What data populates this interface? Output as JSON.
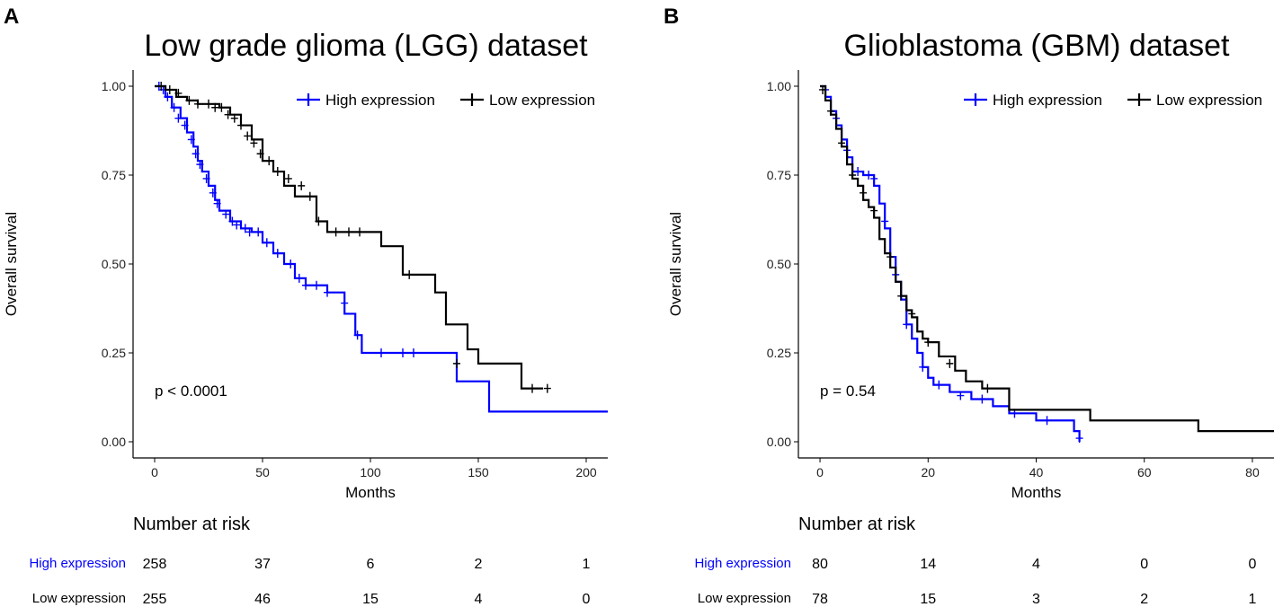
{
  "colors": {
    "high": "#0000ff",
    "low": "#000000"
  },
  "chart_data": [
    {
      "type": "line",
      "panel": "A",
      "title": "Low grade glioma (LGG) dataset",
      "xlabel": "Months",
      "ylabel": "Overall survival",
      "xlim": [
        -10,
        210
      ],
      "ylim": [
        0,
        1
      ],
      "xticks": [
        0,
        50,
        100,
        150,
        200
      ],
      "yticks": [
        0,
        0.25,
        0.5,
        0.75,
        1
      ],
      "ytick_labels": [
        "0.00",
        "0.25",
        "0.50",
        "0.75",
        "1.00"
      ],
      "legend": [
        "High expression",
        "Low expression"
      ],
      "legend_position": "top-right",
      "pvalue_text": "p < 0.0001",
      "series": [
        {
          "name": "High expression",
          "color": "#0000ff",
          "x": [
            0,
            5,
            8,
            12,
            15,
            18,
            20,
            22,
            25,
            28,
            30,
            35,
            40,
            45,
            50,
            55,
            60,
            65,
            70,
            80,
            88,
            93,
            96,
            140,
            155,
            210
          ],
          "y": [
            1.0,
            0.97,
            0.94,
            0.91,
            0.87,
            0.83,
            0.79,
            0.76,
            0.72,
            0.68,
            0.65,
            0.62,
            0.6,
            0.59,
            0.56,
            0.53,
            0.5,
            0.46,
            0.44,
            0.42,
            0.36,
            0.3,
            0.25,
            0.17,
            0.085,
            0.085
          ],
          "censor_x": [
            2,
            4,
            6,
            9,
            11,
            14,
            17,
            19,
            21,
            24,
            27,
            29,
            33,
            36,
            38,
            42,
            44,
            48,
            52,
            57,
            63,
            67,
            70,
            75,
            80,
            88,
            94,
            105,
            115,
            120
          ],
          "censor_y": [
            1.0,
            0.99,
            0.97,
            0.94,
            0.91,
            0.89,
            0.85,
            0.81,
            0.78,
            0.74,
            0.7,
            0.67,
            0.64,
            0.62,
            0.61,
            0.6,
            0.59,
            0.59,
            0.56,
            0.53,
            0.5,
            0.46,
            0.44,
            0.44,
            0.42,
            0.39,
            0.3,
            0.25,
            0.25,
            0.25
          ]
        },
        {
          "name": "Low expression",
          "color": "#000000",
          "x": [
            0,
            5,
            10,
            15,
            20,
            30,
            35,
            40,
            45,
            50,
            55,
            60,
            65,
            75,
            80,
            105,
            115,
            130,
            135,
            145,
            150,
            170,
            180
          ],
          "y": [
            1.0,
            0.99,
            0.97,
            0.96,
            0.95,
            0.94,
            0.92,
            0.89,
            0.85,
            0.79,
            0.76,
            0.72,
            0.69,
            0.62,
            0.59,
            0.55,
            0.47,
            0.42,
            0.33,
            0.26,
            0.22,
            0.15,
            0.15
          ],
          "censor_x": [
            3,
            7,
            11,
            16,
            20,
            25,
            28,
            31,
            34,
            37,
            40,
            43,
            46,
            49,
            53,
            57,
            62,
            68,
            72,
            76,
            84,
            90,
            95,
            118,
            140,
            175,
            182
          ],
          "censor_y": [
            1.0,
            0.99,
            0.98,
            0.96,
            0.95,
            0.95,
            0.94,
            0.94,
            0.92,
            0.91,
            0.89,
            0.86,
            0.84,
            0.81,
            0.79,
            0.76,
            0.74,
            0.72,
            0.69,
            0.62,
            0.59,
            0.59,
            0.59,
            0.47,
            0.22,
            0.15,
            0.15
          ]
        }
      ],
      "risk_table": {
        "title": "Number at risk",
        "times": [
          0,
          50,
          100,
          150,
          200
        ],
        "rows": [
          {
            "label": "High expression",
            "color": "#0000ff",
            "values": [
              "258",
              "37",
              "6",
              "2",
              "1"
            ]
          },
          {
            "label": "Low expression",
            "color": "#000000",
            "values": [
              "255",
              "46",
              "15",
              "4",
              "0"
            ]
          }
        ]
      }
    },
    {
      "type": "line",
      "panel": "B",
      "title": "Glioblastoma (GBM) dataset",
      "xlabel": "Months",
      "ylabel": "Overall survival",
      "xlim": [
        -4,
        84
      ],
      "ylim": [
        0,
        1
      ],
      "xticks": [
        0,
        20,
        40,
        60,
        80
      ],
      "yticks": [
        0,
        0.25,
        0.5,
        0.75,
        1
      ],
      "ytick_labels": [
        "0.00",
        "0.25",
        "0.50",
        "0.75",
        "1.00"
      ],
      "legend": [
        "High expression",
        "Low expression"
      ],
      "legend_position": "top-right",
      "pvalue_text": "p = 0.54",
      "series": [
        {
          "name": "High expression",
          "color": "#0000ff",
          "x": [
            0,
            1,
            2,
            3,
            4,
            5,
            6,
            8,
            10,
            11,
            12,
            13,
            14,
            15,
            16,
            17,
            18,
            19,
            20,
            21,
            24,
            28,
            32,
            35,
            40,
            46,
            47,
            48
          ],
          "y": [
            1.0,
            0.97,
            0.93,
            0.89,
            0.85,
            0.8,
            0.76,
            0.75,
            0.72,
            0.67,
            0.6,
            0.52,
            0.45,
            0.4,
            0.33,
            0.29,
            0.25,
            0.21,
            0.18,
            0.16,
            0.14,
            0.12,
            0.1,
            0.08,
            0.06,
            0.06,
            0.03,
            0.0
          ],
          "censor_x": [
            1,
            3,
            5,
            7,
            9,
            10,
            12,
            14,
            16,
            19,
            22,
            26,
            30,
            36,
            42,
            48
          ],
          "censor_y": [
            0.99,
            0.91,
            0.82,
            0.76,
            0.75,
            0.74,
            0.62,
            0.47,
            0.33,
            0.21,
            0.16,
            0.13,
            0.12,
            0.08,
            0.06,
            0.01
          ]
        },
        {
          "name": "Low expression",
          "color": "#000000",
          "x": [
            0,
            1,
            2,
            3,
            4,
            5,
            6,
            7,
            8,
            9,
            10,
            11,
            12,
            13,
            14,
            15,
            16,
            17,
            18,
            19,
            20,
            22,
            25,
            27,
            30,
            35,
            50,
            70,
            84
          ],
          "y": [
            1.0,
            0.96,
            0.92,
            0.88,
            0.83,
            0.78,
            0.74,
            0.72,
            0.68,
            0.66,
            0.63,
            0.57,
            0.53,
            0.49,
            0.45,
            0.41,
            0.37,
            0.35,
            0.31,
            0.29,
            0.28,
            0.24,
            0.2,
            0.17,
            0.15,
            0.09,
            0.06,
            0.03,
            0.03
          ],
          "censor_x": [
            0.5,
            2,
            4,
            6,
            8,
            10,
            13,
            15,
            17,
            20,
            24,
            31
          ],
          "censor_y": [
            0.99,
            0.93,
            0.84,
            0.75,
            0.7,
            0.65,
            0.52,
            0.41,
            0.36,
            0.28,
            0.22,
            0.15
          ]
        }
      ],
      "risk_table": {
        "title": "Number at risk",
        "times": [
          0,
          20,
          40,
          60,
          80
        ],
        "rows": [
          {
            "label": "High expression",
            "color": "#0000ff",
            "values": [
              "80",
              "14",
              "4",
              "0",
              "0"
            ]
          },
          {
            "label": "Low expression",
            "color": "#000000",
            "values": [
              "78",
              "15",
              "3",
              "2",
              "1"
            ]
          }
        ]
      }
    }
  ]
}
